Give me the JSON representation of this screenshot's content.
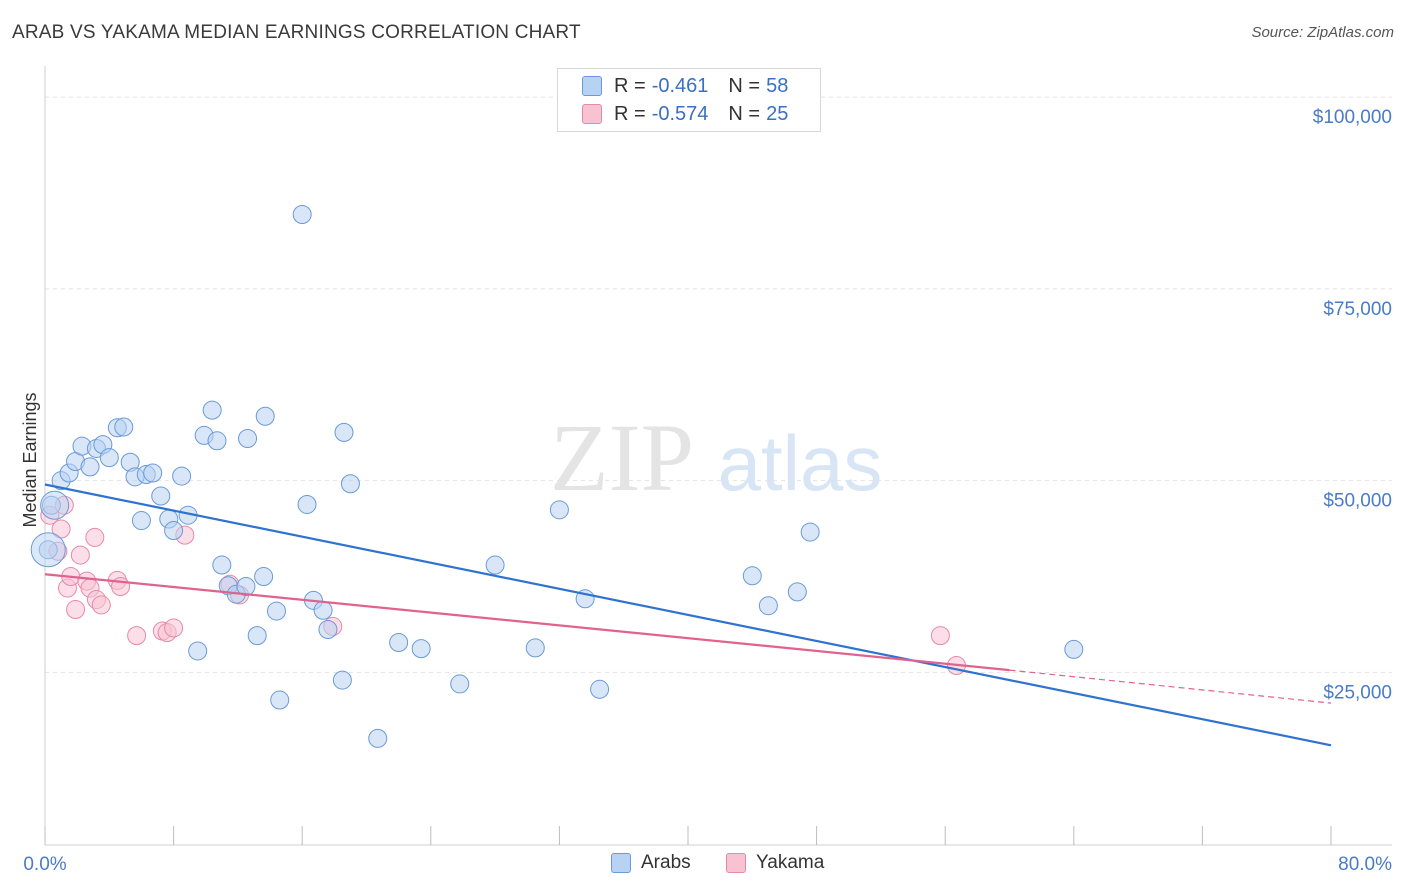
{
  "title": "ARAB VS YAKAMA MEDIAN EARNINGS CORRELATION CHART",
  "source": "Source: ZipAtlas.com",
  "watermark": {
    "zip": "ZIP",
    "atlas": "atlas"
  },
  "colors": {
    "arabs_fill": "#b8d2f3",
    "arabs_stroke": "#6a9ad8",
    "arabs_line": "#2f72d0",
    "yakama_fill": "#f7c3d3",
    "yakama_stroke": "#e68aa8",
    "yakama_line": "#e0628e",
    "axis_text": "#4a7bc8",
    "grid": "#e3e3e3"
  },
  "legend": {
    "rows": [
      {
        "r_label": "R =",
        "r_value": "-0.461",
        "n_label": "N =",
        "n_value": "58"
      },
      {
        "r_label": "R =",
        "r_value": "-0.574",
        "n_label": "N =",
        "n_value": "25"
      }
    ]
  },
  "bottom_legend": [
    "Arabs",
    "Yakama"
  ],
  "chart_data": {
    "type": "scatter",
    "title": "ARAB VS YAKAMA MEDIAN EARNINGS CORRELATION CHART",
    "xlabel": "",
    "ylabel": "Median Earnings",
    "x_tick_labels": [
      "0.0%",
      "80.0%"
    ],
    "y_tick_labels": [
      "$25,000",
      "$50,000",
      "$75,000",
      "$100,000"
    ],
    "y_ticks": [
      25000,
      50000,
      75000,
      100000
    ],
    "xlim": [
      0,
      80
    ],
    "ylim": [
      2500,
      102500
    ],
    "grid": true,
    "legend_position": "top-center",
    "series": [
      {
        "name": "Arabs",
        "r": -0.461,
        "n": 58,
        "trend": {
          "x": [
            0,
            80
          ],
          "y": [
            49500,
            15500
          ]
        },
        "points": [
          [
            0.2,
            41000
          ],
          [
            0.4,
            46800
          ],
          [
            1.0,
            50000
          ],
          [
            1.5,
            51000
          ],
          [
            1.9,
            52500
          ],
          [
            2.3,
            54500
          ],
          [
            2.8,
            51800
          ],
          [
            3.2,
            54200
          ],
          [
            3.6,
            54700
          ],
          [
            4.0,
            53000
          ],
          [
            4.5,
            56900
          ],
          [
            4.9,
            57000
          ],
          [
            5.3,
            52400
          ],
          [
            5.6,
            50500
          ],
          [
            6.0,
            44800
          ],
          [
            6.3,
            50800
          ],
          [
            6.7,
            51000
          ],
          [
            7.2,
            48000
          ],
          [
            7.7,
            45000
          ],
          [
            8.0,
            43500
          ],
          [
            8.5,
            50600
          ],
          [
            8.9,
            45500
          ],
          [
            9.5,
            27800
          ],
          [
            9.9,
            55900
          ],
          [
            10.4,
            59200
          ],
          [
            10.7,
            55200
          ],
          [
            11.0,
            39000
          ],
          [
            11.4,
            36300
          ],
          [
            11.9,
            35200
          ],
          [
            12.5,
            36200
          ],
          [
            12.6,
            55500
          ],
          [
            13.2,
            29800
          ],
          [
            13.6,
            37500
          ],
          [
            13.7,
            58400
          ],
          [
            14.4,
            33000
          ],
          [
            14.6,
            21400
          ],
          [
            16.0,
            84700
          ],
          [
            16.3,
            46900
          ],
          [
            16.7,
            34400
          ],
          [
            17.3,
            33100
          ],
          [
            17.6,
            30600
          ],
          [
            18.5,
            24000
          ],
          [
            18.6,
            56300
          ],
          [
            19.0,
            49600
          ],
          [
            20.7,
            16400
          ],
          [
            22.0,
            28900
          ],
          [
            23.4,
            28100
          ],
          [
            25.8,
            23500
          ],
          [
            28.0,
            39000
          ],
          [
            30.5,
            28200
          ],
          [
            32.0,
            46200
          ],
          [
            33.6,
            34600
          ],
          [
            34.5,
            22800
          ],
          [
            44.0,
            37600
          ],
          [
            45.0,
            33700
          ],
          [
            46.8,
            35500
          ],
          [
            47.6,
            43300
          ],
          [
            64.0,
            28000
          ]
        ]
      },
      {
        "name": "Yakama",
        "r": -0.574,
        "n": 25,
        "trend": {
          "x": [
            0,
            60
          ],
          "y": [
            37800,
            25300
          ]
        },
        "trend_dashed": {
          "x": [
            60,
            80
          ],
          "y": [
            25300,
            21000
          ]
        },
        "points": [
          [
            0.3,
            45500
          ],
          [
            0.8,
            40800
          ],
          [
            1.0,
            43700
          ],
          [
            1.2,
            46800
          ],
          [
            1.4,
            36000
          ],
          [
            1.6,
            37500
          ],
          [
            1.9,
            33200
          ],
          [
            2.2,
            40300
          ],
          [
            2.6,
            36900
          ],
          [
            2.8,
            36000
          ],
          [
            3.1,
            42600
          ],
          [
            3.2,
            34500
          ],
          [
            3.5,
            33800
          ],
          [
            4.5,
            37000
          ],
          [
            4.7,
            36200
          ],
          [
            5.7,
            29800
          ],
          [
            7.3,
            30400
          ],
          [
            7.6,
            30200
          ],
          [
            8.0,
            30800
          ],
          [
            8.7,
            42900
          ],
          [
            11.5,
            36500
          ],
          [
            12.1,
            35100
          ],
          [
            17.9,
            31000
          ],
          [
            55.7,
            29800
          ],
          [
            56.7,
            25900
          ]
        ]
      }
    ]
  }
}
